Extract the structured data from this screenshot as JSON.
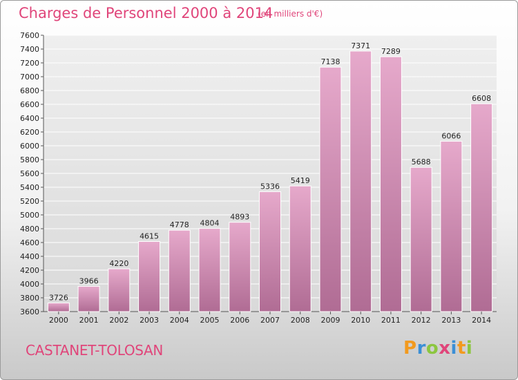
{
  "chart_data": {
    "type": "bar",
    "title": "Charges de Personnel 2000 à 2014",
    "subtitle": "(en milliers d'€)",
    "categories": [
      "2000",
      "2001",
      "2002",
      "2003",
      "2004",
      "2005",
      "2006",
      "2007",
      "2008",
      "2009",
      "2010",
      "2011",
      "2012",
      "2013",
      "2014"
    ],
    "values": [
      3726,
      3966,
      4220,
      4615,
      4778,
      4804,
      4893,
      5336,
      5419,
      7138,
      7371,
      7289,
      5688,
      6066,
      6608
    ],
    "ylim": [
      3600,
      7600
    ],
    "yticks": [
      3600,
      3800,
      4000,
      4200,
      4400,
      4600,
      4800,
      5000,
      5200,
      5400,
      5600,
      5800,
      6000,
      6200,
      6400,
      6600,
      6800,
      7000,
      7200,
      7400,
      7600
    ],
    "xlabel": "",
    "ylabel": "",
    "grid": true,
    "bar_color": "#c97aa6",
    "title_color": "#e0457a"
  },
  "footer": {
    "city": "CASTANET-TOLOSAN",
    "logo_letters": [
      {
        "char": "P",
        "color": "#f29a1e"
      },
      {
        "char": "r",
        "color": "#3b8fd6"
      },
      {
        "char": "o",
        "color": "#8cc63f"
      },
      {
        "char": "x",
        "color": "#e0457a"
      },
      {
        "char": "i",
        "color": "#3b8fd6"
      },
      {
        "char": "t",
        "color": "#f29a1e"
      },
      {
        "char": "i",
        "color": "#8cc63f"
      }
    ]
  }
}
